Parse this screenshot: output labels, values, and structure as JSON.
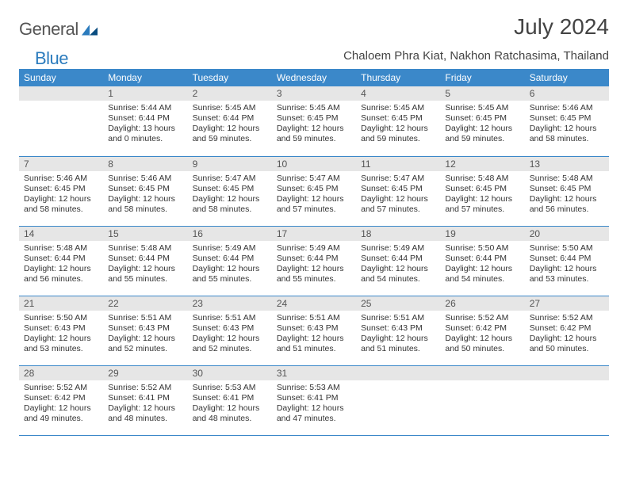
{
  "logo": {
    "text1": "General",
    "text2": "Blue"
  },
  "title": "July 2024",
  "subtitle": "Chaloem Phra Kiat, Nakhon Ratchasima, Thailand",
  "colors": {
    "header_bg": "#3b88c9",
    "header_text": "#ffffff",
    "daynum_bg": "#e6e6e6",
    "rule": "#3b88c9",
    "logo_gray": "#555555",
    "logo_blue": "#2b7bbd"
  },
  "dow": [
    "Sunday",
    "Monday",
    "Tuesday",
    "Wednesday",
    "Thursday",
    "Friday",
    "Saturday"
  ],
  "weeks": [
    [
      {
        "n": "",
        "lines": []
      },
      {
        "n": "1",
        "lines": [
          "Sunrise: 5:44 AM",
          "Sunset: 6:44 PM",
          "Daylight: 13 hours",
          "and 0 minutes."
        ]
      },
      {
        "n": "2",
        "lines": [
          "Sunrise: 5:45 AM",
          "Sunset: 6:44 PM",
          "Daylight: 12 hours",
          "and 59 minutes."
        ]
      },
      {
        "n": "3",
        "lines": [
          "Sunrise: 5:45 AM",
          "Sunset: 6:45 PM",
          "Daylight: 12 hours",
          "and 59 minutes."
        ]
      },
      {
        "n": "4",
        "lines": [
          "Sunrise: 5:45 AM",
          "Sunset: 6:45 PM",
          "Daylight: 12 hours",
          "and 59 minutes."
        ]
      },
      {
        "n": "5",
        "lines": [
          "Sunrise: 5:45 AM",
          "Sunset: 6:45 PM",
          "Daylight: 12 hours",
          "and 59 minutes."
        ]
      },
      {
        "n": "6",
        "lines": [
          "Sunrise: 5:46 AM",
          "Sunset: 6:45 PM",
          "Daylight: 12 hours",
          "and 58 minutes."
        ]
      }
    ],
    [
      {
        "n": "7",
        "lines": [
          "Sunrise: 5:46 AM",
          "Sunset: 6:45 PM",
          "Daylight: 12 hours",
          "and 58 minutes."
        ]
      },
      {
        "n": "8",
        "lines": [
          "Sunrise: 5:46 AM",
          "Sunset: 6:45 PM",
          "Daylight: 12 hours",
          "and 58 minutes."
        ]
      },
      {
        "n": "9",
        "lines": [
          "Sunrise: 5:47 AM",
          "Sunset: 6:45 PM",
          "Daylight: 12 hours",
          "and 58 minutes."
        ]
      },
      {
        "n": "10",
        "lines": [
          "Sunrise: 5:47 AM",
          "Sunset: 6:45 PM",
          "Daylight: 12 hours",
          "and 57 minutes."
        ]
      },
      {
        "n": "11",
        "lines": [
          "Sunrise: 5:47 AM",
          "Sunset: 6:45 PM",
          "Daylight: 12 hours",
          "and 57 minutes."
        ]
      },
      {
        "n": "12",
        "lines": [
          "Sunrise: 5:48 AM",
          "Sunset: 6:45 PM",
          "Daylight: 12 hours",
          "and 57 minutes."
        ]
      },
      {
        "n": "13",
        "lines": [
          "Sunrise: 5:48 AM",
          "Sunset: 6:45 PM",
          "Daylight: 12 hours",
          "and 56 minutes."
        ]
      }
    ],
    [
      {
        "n": "14",
        "lines": [
          "Sunrise: 5:48 AM",
          "Sunset: 6:44 PM",
          "Daylight: 12 hours",
          "and 56 minutes."
        ]
      },
      {
        "n": "15",
        "lines": [
          "Sunrise: 5:48 AM",
          "Sunset: 6:44 PM",
          "Daylight: 12 hours",
          "and 55 minutes."
        ]
      },
      {
        "n": "16",
        "lines": [
          "Sunrise: 5:49 AM",
          "Sunset: 6:44 PM",
          "Daylight: 12 hours",
          "and 55 minutes."
        ]
      },
      {
        "n": "17",
        "lines": [
          "Sunrise: 5:49 AM",
          "Sunset: 6:44 PM",
          "Daylight: 12 hours",
          "and 55 minutes."
        ]
      },
      {
        "n": "18",
        "lines": [
          "Sunrise: 5:49 AM",
          "Sunset: 6:44 PM",
          "Daylight: 12 hours",
          "and 54 minutes."
        ]
      },
      {
        "n": "19",
        "lines": [
          "Sunrise: 5:50 AM",
          "Sunset: 6:44 PM",
          "Daylight: 12 hours",
          "and 54 minutes."
        ]
      },
      {
        "n": "20",
        "lines": [
          "Sunrise: 5:50 AM",
          "Sunset: 6:44 PM",
          "Daylight: 12 hours",
          "and 53 minutes."
        ]
      }
    ],
    [
      {
        "n": "21",
        "lines": [
          "Sunrise: 5:50 AM",
          "Sunset: 6:43 PM",
          "Daylight: 12 hours",
          "and 53 minutes."
        ]
      },
      {
        "n": "22",
        "lines": [
          "Sunrise: 5:51 AM",
          "Sunset: 6:43 PM",
          "Daylight: 12 hours",
          "and 52 minutes."
        ]
      },
      {
        "n": "23",
        "lines": [
          "Sunrise: 5:51 AM",
          "Sunset: 6:43 PM",
          "Daylight: 12 hours",
          "and 52 minutes."
        ]
      },
      {
        "n": "24",
        "lines": [
          "Sunrise: 5:51 AM",
          "Sunset: 6:43 PM",
          "Daylight: 12 hours",
          "and 51 minutes."
        ]
      },
      {
        "n": "25",
        "lines": [
          "Sunrise: 5:51 AM",
          "Sunset: 6:43 PM",
          "Daylight: 12 hours",
          "and 51 minutes."
        ]
      },
      {
        "n": "26",
        "lines": [
          "Sunrise: 5:52 AM",
          "Sunset: 6:42 PM",
          "Daylight: 12 hours",
          "and 50 minutes."
        ]
      },
      {
        "n": "27",
        "lines": [
          "Sunrise: 5:52 AM",
          "Sunset: 6:42 PM",
          "Daylight: 12 hours",
          "and 50 minutes."
        ]
      }
    ],
    [
      {
        "n": "28",
        "lines": [
          "Sunrise: 5:52 AM",
          "Sunset: 6:42 PM",
          "Daylight: 12 hours",
          "and 49 minutes."
        ]
      },
      {
        "n": "29",
        "lines": [
          "Sunrise: 5:52 AM",
          "Sunset: 6:41 PM",
          "Daylight: 12 hours",
          "and 48 minutes."
        ]
      },
      {
        "n": "30",
        "lines": [
          "Sunrise: 5:53 AM",
          "Sunset: 6:41 PM",
          "Daylight: 12 hours",
          "and 48 minutes."
        ]
      },
      {
        "n": "31",
        "lines": [
          "Sunrise: 5:53 AM",
          "Sunset: 6:41 PM",
          "Daylight: 12 hours",
          "and 47 minutes."
        ]
      },
      {
        "n": "",
        "lines": []
      },
      {
        "n": "",
        "lines": []
      },
      {
        "n": "",
        "lines": []
      }
    ]
  ]
}
